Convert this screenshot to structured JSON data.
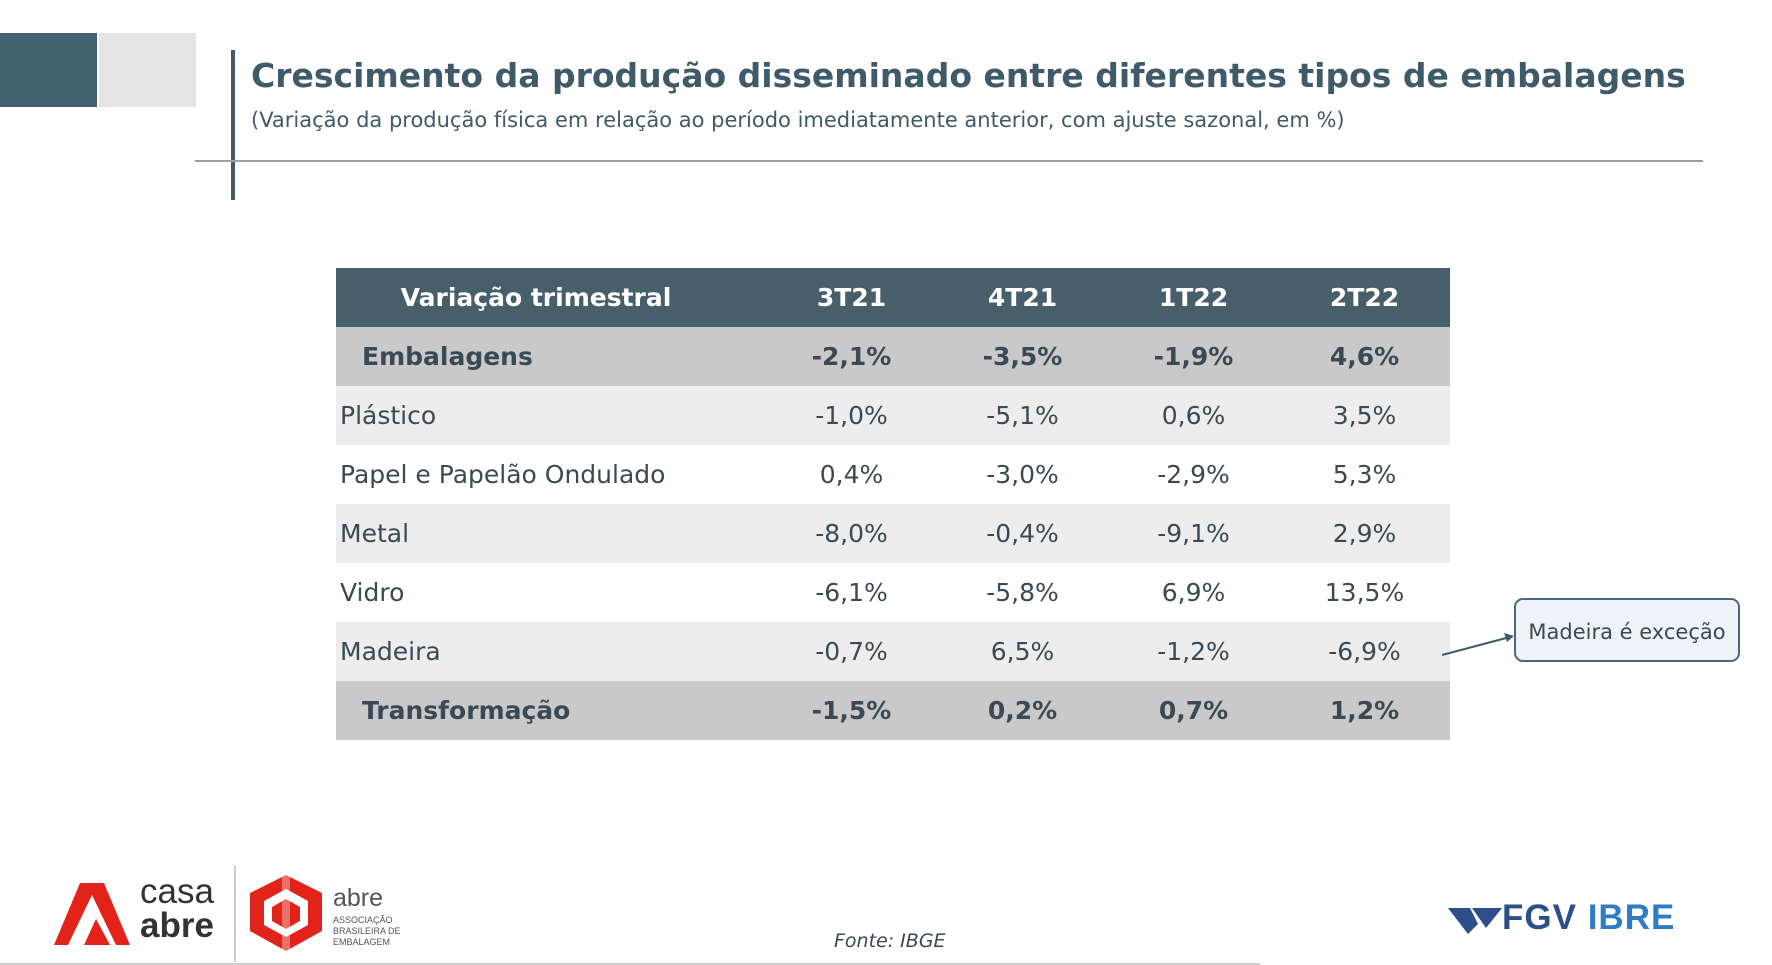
{
  "header": {
    "title": "Crescimento da produção disseminado entre diferentes tipos de embalagens",
    "subtitle": "(Variação da produção física em relação ao período imediatamente anterior, com ajuste sazonal, em %)"
  },
  "table": {
    "columns": [
      "Variação trimestral",
      "3T21",
      "4T21",
      "1T22",
      "2T22"
    ],
    "rows": [
      {
        "label": "Embalagens",
        "values": [
          "-2,1%",
          "-3,5%",
          "-1,9%",
          "4,6%"
        ]
      },
      {
        "label": "Plástico",
        "values": [
          "-1,0%",
          "-5,1%",
          "0,6%",
          "3,5%"
        ]
      },
      {
        "label": "Papel e Papelão Ondulado",
        "values": [
          "0,4%",
          "-3,0%",
          "-2,9%",
          "5,3%"
        ]
      },
      {
        "label": "Metal",
        "values": [
          "-8,0%",
          "-0,4%",
          "-9,1%",
          "2,9%"
        ]
      },
      {
        "label": "Vidro",
        "values": [
          "-6,1%",
          "-5,8%",
          "6,9%",
          "13,5%"
        ]
      },
      {
        "label": "Madeira",
        "values": [
          "-0,7%",
          "6,5%",
          "-1,2%",
          "-6,9%"
        ]
      },
      {
        "label": "Transformação",
        "values": [
          "-1,5%",
          "0,2%",
          "0,7%",
          "1,2%"
        ]
      }
    ]
  },
  "callout": {
    "text": "Madeira é exceção"
  },
  "footer": {
    "source": "Fonte: IBGE",
    "logo_casa_line1": "casa",
    "logo_casa_line2": "abre",
    "logo_abre_word": "abre",
    "logo_abre_sub": "ASSOCIAÇÃO BRASILEIRA DE EMBALAGEM",
    "logo_fgv": "FGV",
    "logo_ibre": "IBRE"
  },
  "colors": {
    "header_bg": "#465f6b",
    "highlight_row": "#c9c9c9",
    "alt_row": "#ededed",
    "title": "#3f5a68",
    "brand_red": "#e2231a",
    "fgv_blue": "#2c4f8a"
  }
}
